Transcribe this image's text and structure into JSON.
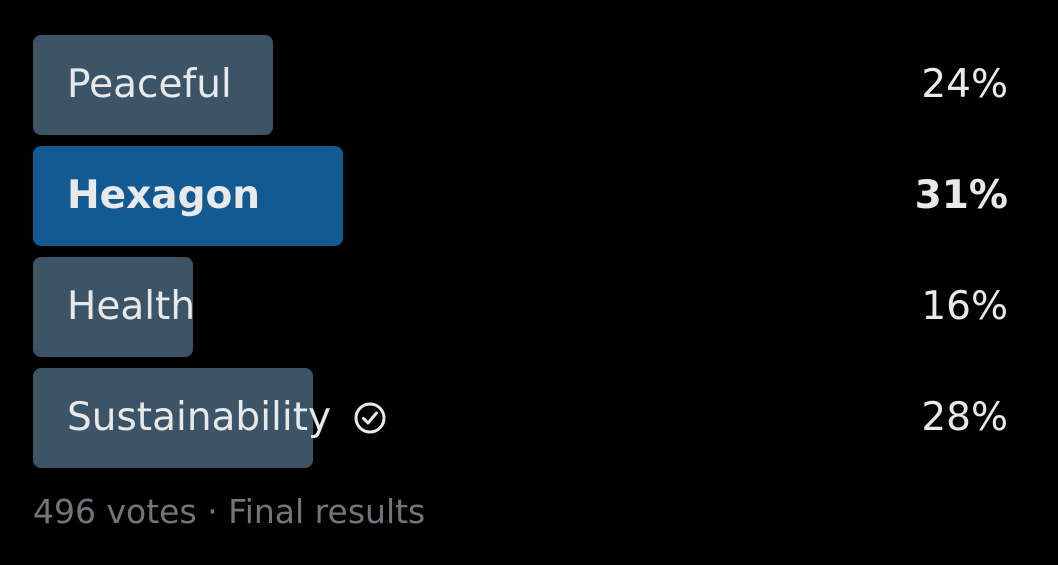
{
  "colors": {
    "bar_default": "#3d5466",
    "bar_winner": "#125a91",
    "text": "#e7e9ea",
    "muted": "#71767b",
    "background": "#000000"
  },
  "options": [
    {
      "label": "Peaceful",
      "percent_label": "24%",
      "percent": 24,
      "winner": false,
      "voted": false
    },
    {
      "label": "Hexagon",
      "percent_label": "31%",
      "percent": 31,
      "winner": true,
      "voted": false
    },
    {
      "label": "Health",
      "percent_label": "16%",
      "percent": 16,
      "winner": false,
      "voted": false
    },
    {
      "label": "Sustainability",
      "percent_label": "28%",
      "percent": 28,
      "winner": false,
      "voted": true,
      "voted_icon": "check-circle-icon"
    }
  ],
  "footer": {
    "votes": "496 votes",
    "separator": "·",
    "status": "Final results"
  }
}
